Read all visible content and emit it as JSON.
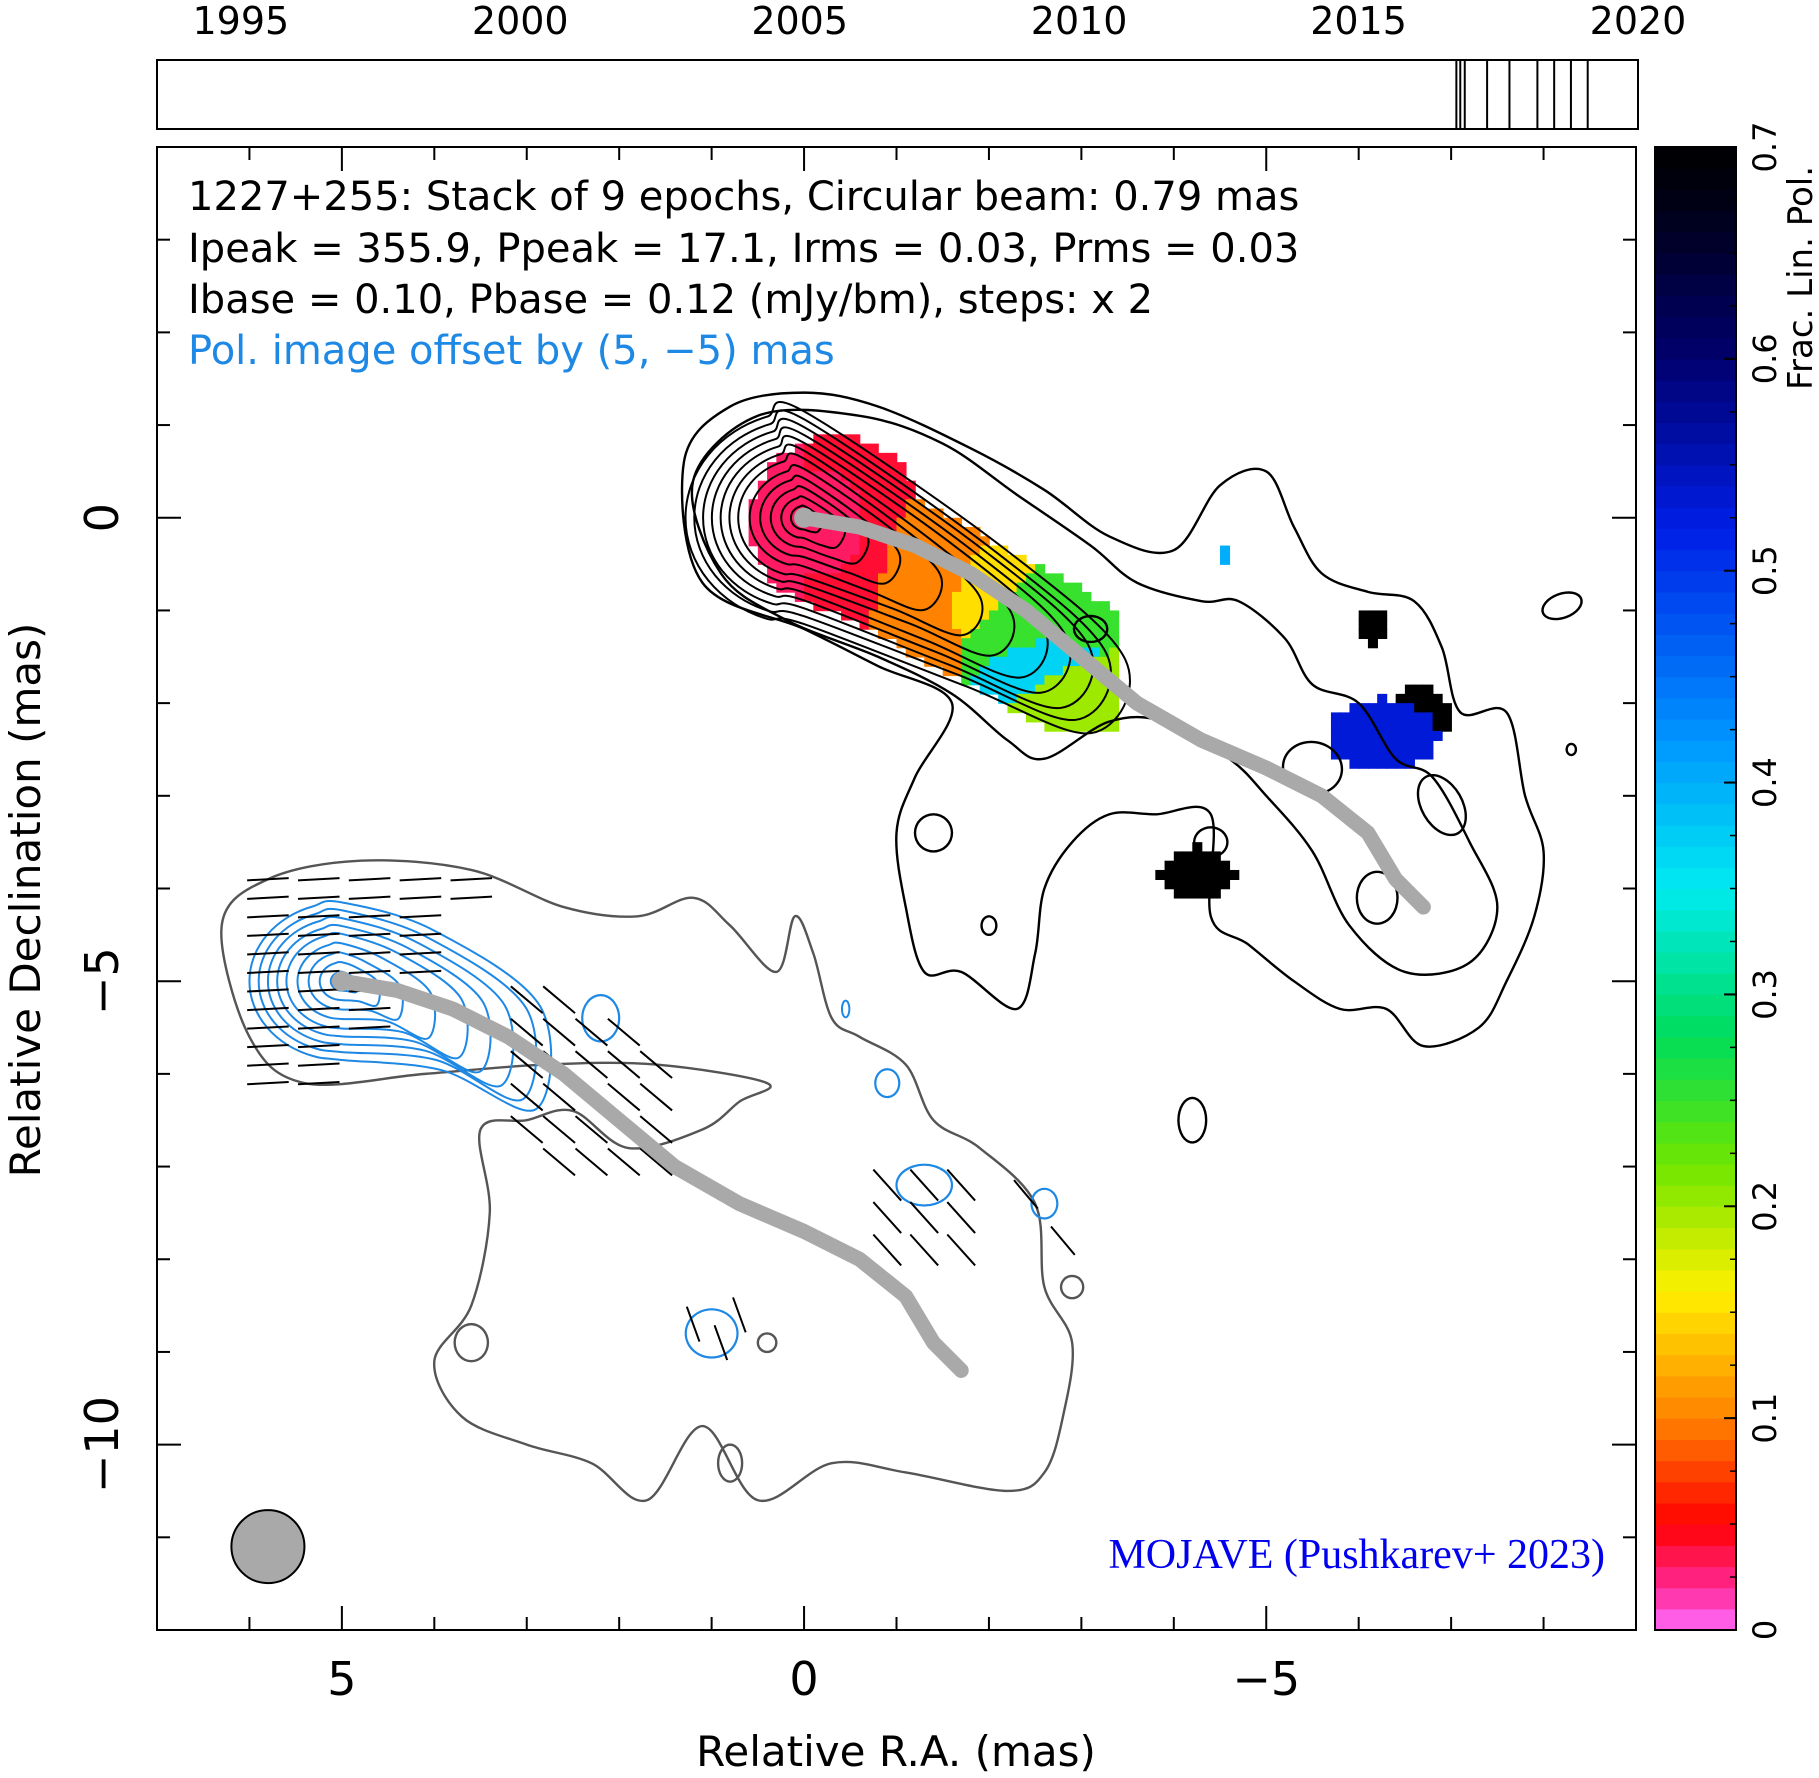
{
  "timeline": {
    "years": [
      "1995",
      "2000",
      "2005",
      "2010",
      "2015",
      "2020"
    ],
    "year_range": [
      1993.5,
      2020.0
    ],
    "epochs": [
      2016.75,
      2016.82,
      2016.9,
      2017.3,
      2017.7,
      2018.2,
      2018.5,
      2018.8,
      2019.1
    ]
  },
  "header": {
    "line1": "1227+255: Stack of 9 epochs, Circular beam: 0.79 mas",
    "line2": "Ipeak = 355.9, Ppeak = 17.1, Irms = 0.03, Prms = 0.03",
    "line3": "Ibase = 0.10, Pbase = 0.12 (mJy/bm), steps: x 2",
    "line4": "Pol. image offset by (5, −5) mas"
  },
  "credit": "MOJAVE (Pushkarev+ 2023)",
  "axes": {
    "xlabel": "Relative R.A. (mas)",
    "ylabel": "Relative Declination (mas)",
    "xlim": [
      7.0,
      -9.0
    ],
    "ylim": [
      -12.0,
      4.0
    ],
    "xticks": [
      {
        "v": 5,
        "label": "5"
      },
      {
        "v": 0,
        "label": "0"
      },
      {
        "v": -5,
        "label": "−5"
      }
    ],
    "yticks": [
      {
        "v": 0,
        "label": "0"
      },
      {
        "v": -5,
        "label": "−5"
      },
      {
        "v": -10,
        "label": "−10"
      }
    ],
    "minor_step": 1
  },
  "colorbar": {
    "label": "Frac. Lin. Pol.",
    "range": [
      0,
      0.7
    ],
    "ticks": [
      "0",
      "0.1",
      "0.2",
      "0.3",
      "0.4",
      "0.5",
      "0.6",
      "0.7"
    ]
  },
  "beam": {
    "diameter_mas": 0.79,
    "center": [
      5.8,
      -11.1
    ]
  },
  "colors": {
    "axis": "#000000",
    "total_intensity_contours": "#000000",
    "pol_contours": "#1e88e5",
    "pol_base_contour": "#555555",
    "ridge": "#a9a9a9",
    "beam": "#a9a9a9",
    "header_pol_text": "#1e88e5",
    "credit": "#0000ee"
  },
  "chart_data": {
    "type": "contour",
    "source": "1227+255",
    "epochs_stacked": 9,
    "beam_mas": 0.79,
    "Ipeak": 355.9,
    "Ppeak": 17.1,
    "Irms": 0.03,
    "Prms": 0.03,
    "Ibase": 0.1,
    "Pbase": 0.12,
    "units": "mJy/bm",
    "contour_step": 2,
    "pol_offset_mas": [
      5,
      -5
    ],
    "ridge_line": [
      [
        0.0,
        0.0
      ],
      [
        -0.6,
        -0.1
      ],
      [
        -1.2,
        -0.3
      ],
      [
        -1.8,
        -0.6
      ],
      [
        -2.4,
        -1.0
      ],
      [
        -3.0,
        -1.5
      ],
      [
        -3.6,
        -2.0
      ],
      [
        -4.3,
        -2.4
      ],
      [
        -5.0,
        -2.7
      ],
      [
        -5.6,
        -3.0
      ],
      [
        -6.1,
        -3.4
      ],
      [
        -6.4,
        -3.9
      ],
      [
        -6.7,
        -4.2
      ]
    ],
    "frac_pol_patches": [
      {
        "x": -0.3,
        "y": -0.2,
        "value": 0.05
      },
      {
        "x": -1.6,
        "y": -0.6,
        "value": 0.14
      },
      {
        "x": -2.4,
        "y": -1.2,
        "value": 0.25
      },
      {
        "x": -2.4,
        "y": -1.6,
        "value": 0.38
      },
      {
        "x": -2.6,
        "y": -2.2,
        "value": 0.18
      },
      {
        "x": -6.2,
        "y": -2.3,
        "value": 0.55
      },
      {
        "x": -6.5,
        "y": -2.1,
        "value": 0.7
      },
      {
        "x": -4.2,
        "y": -3.7,
        "value": 0.7
      },
      {
        "x": -6.0,
        "y": -1.1,
        "value": 0.7
      }
    ]
  }
}
